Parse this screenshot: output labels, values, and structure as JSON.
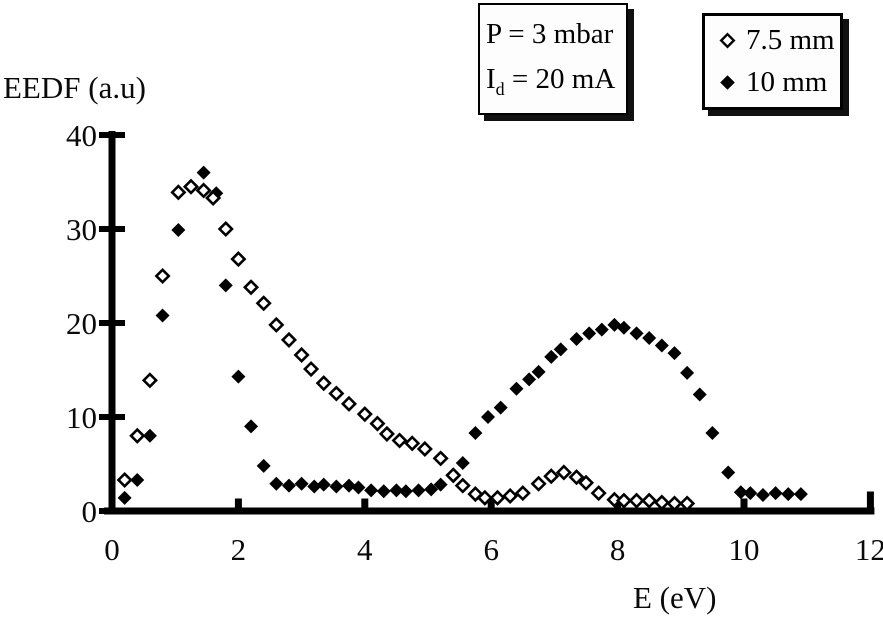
{
  "figure": {
    "background": "#ffffff",
    "ink_color": "#000000"
  },
  "annotation_box": {
    "line1": "P = 3 mbar",
    "line2_main": "I",
    "line2_sub": "d",
    "line2_rest": " = 20 mA"
  },
  "chart_data": {
    "type": "scatter",
    "title": "",
    "xlabel": "E (eV)",
    "ylabel": "EEDF (a.u)",
    "xlim": [
      0,
      12
    ],
    "ylim": [
      0,
      40
    ],
    "xticks": [
      0,
      2,
      4,
      6,
      8,
      10,
      12
    ],
    "yticks": [
      0,
      10,
      20,
      30,
      40
    ],
    "grid": false,
    "legend_position": "top-right",
    "series": [
      {
        "name": "7.5 mm",
        "marker": "open-diamond",
        "color": "#000000",
        "points": [
          [
            0.2,
            3.3
          ],
          [
            0.4,
            8.0
          ],
          [
            0.6,
            13.9
          ],
          [
            0.8,
            25.0
          ],
          [
            1.05,
            33.9
          ],
          [
            1.25,
            34.5
          ],
          [
            1.45,
            34.1
          ],
          [
            1.6,
            33.3
          ],
          [
            1.8,
            30.0
          ],
          [
            2.0,
            26.8
          ],
          [
            2.2,
            23.8
          ],
          [
            2.4,
            22.1
          ],
          [
            2.6,
            19.8
          ],
          [
            2.8,
            18.2
          ],
          [
            3.0,
            16.6
          ],
          [
            3.15,
            15.1
          ],
          [
            3.35,
            13.6
          ],
          [
            3.55,
            12.5
          ],
          [
            3.75,
            11.4
          ],
          [
            4.0,
            10.3
          ],
          [
            4.2,
            9.3
          ],
          [
            4.35,
            8.2
          ],
          [
            4.55,
            7.5
          ],
          [
            4.75,
            7.2
          ],
          [
            4.95,
            6.6
          ],
          [
            5.2,
            5.6
          ],
          [
            5.4,
            3.8
          ],
          [
            5.55,
            2.7
          ],
          [
            5.75,
            1.8
          ],
          [
            5.9,
            1.4
          ],
          [
            6.1,
            1.4
          ],
          [
            6.3,
            1.6
          ],
          [
            6.5,
            1.9
          ],
          [
            6.75,
            2.9
          ],
          [
            6.95,
            3.7
          ],
          [
            7.15,
            4.1
          ],
          [
            7.35,
            3.6
          ],
          [
            7.5,
            3.0
          ],
          [
            7.7,
            1.9
          ],
          [
            7.95,
            1.2
          ],
          [
            8.1,
            1.1
          ],
          [
            8.3,
            1.1
          ],
          [
            8.5,
            1.1
          ],
          [
            8.7,
            0.9
          ],
          [
            8.9,
            0.8
          ],
          [
            9.1,
            0.8
          ]
        ]
      },
      {
        "name": "10 mm",
        "marker": "filled-diamond",
        "color": "#000000",
        "points": [
          [
            0.2,
            1.4
          ],
          [
            0.4,
            3.3
          ],
          [
            0.6,
            8.0
          ],
          [
            0.8,
            20.8
          ],
          [
            1.05,
            29.9
          ],
          [
            1.25,
            34.6
          ],
          [
            1.45,
            36.0
          ],
          [
            1.65,
            33.8
          ],
          [
            1.8,
            24.0
          ],
          [
            2.0,
            14.3
          ],
          [
            2.2,
            9.0
          ],
          [
            2.4,
            4.8
          ],
          [
            2.6,
            2.9
          ],
          [
            2.8,
            2.7
          ],
          [
            3.0,
            2.9
          ],
          [
            3.2,
            2.6
          ],
          [
            3.35,
            2.8
          ],
          [
            3.55,
            2.6
          ],
          [
            3.75,
            2.7
          ],
          [
            3.9,
            2.5
          ],
          [
            4.1,
            2.2
          ],
          [
            4.3,
            2.1
          ],
          [
            4.5,
            2.2
          ],
          [
            4.65,
            2.1
          ],
          [
            4.85,
            2.2
          ],
          [
            5.05,
            2.3
          ],
          [
            5.2,
            2.8
          ],
          [
            5.4,
            3.7
          ],
          [
            5.55,
            5.1
          ],
          [
            5.75,
            8.3
          ],
          [
            5.95,
            10.0
          ],
          [
            6.15,
            11.0
          ],
          [
            6.4,
            13.0
          ],
          [
            6.6,
            14.0
          ],
          [
            6.75,
            14.8
          ],
          [
            6.95,
            16.4
          ],
          [
            7.1,
            17.2
          ],
          [
            7.35,
            18.3
          ],
          [
            7.55,
            18.9
          ],
          [
            7.75,
            19.3
          ],
          [
            7.95,
            19.8
          ],
          [
            8.1,
            19.5
          ],
          [
            8.3,
            18.9
          ],
          [
            8.5,
            18.4
          ],
          [
            8.7,
            17.6
          ],
          [
            8.9,
            16.8
          ],
          [
            9.1,
            14.7
          ],
          [
            9.3,
            12.4
          ],
          [
            9.5,
            8.3
          ],
          [
            9.75,
            4.1
          ],
          [
            9.95,
            2.0
          ],
          [
            10.1,
            1.9
          ],
          [
            10.3,
            1.7
          ],
          [
            10.5,
            1.9
          ],
          [
            10.7,
            1.8
          ],
          [
            10.9,
            1.8
          ]
        ]
      }
    ]
  }
}
